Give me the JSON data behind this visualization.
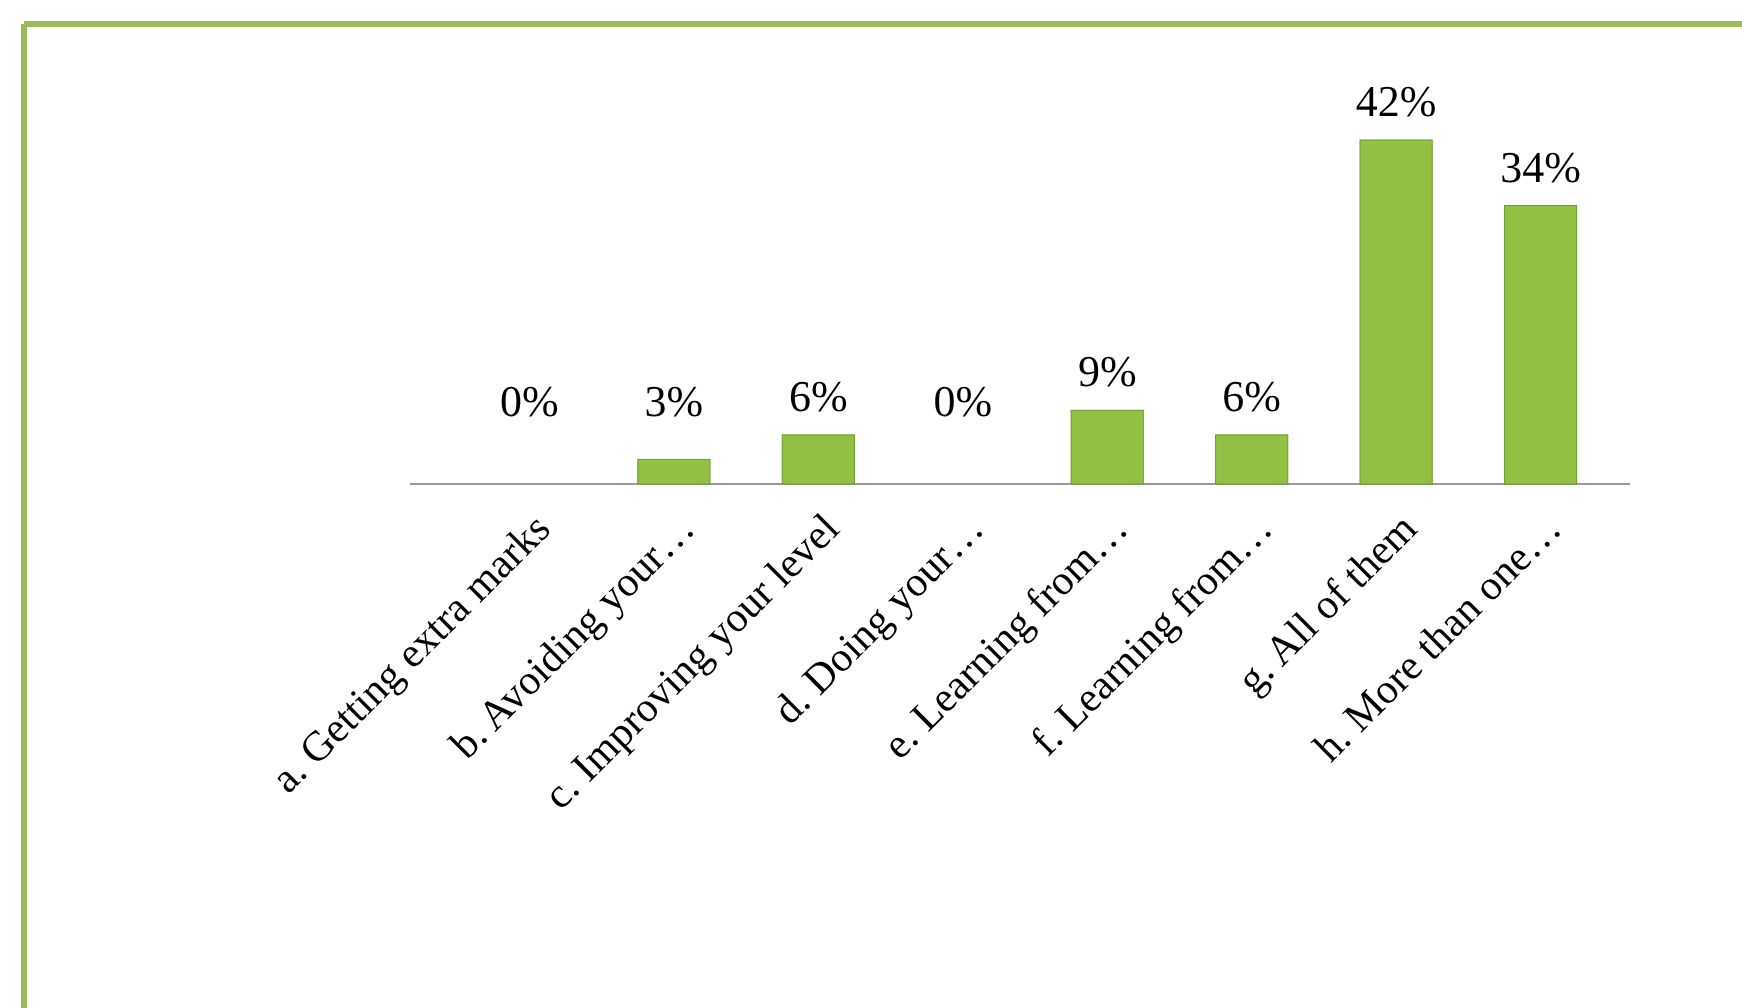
{
  "chart_data": {
    "type": "bar",
    "categories": [
      "a. Getting extra marks",
      "b. Avoiding your…",
      "c. Improving your level",
      "d. Doing your…",
      "e. Learning from…",
      "f. Learning from…",
      "g. All of them",
      "h. More than one…"
    ],
    "values": [
      0,
      3,
      6,
      0,
      9,
      6,
      42,
      34
    ],
    "value_labels": [
      "0%",
      "3%",
      "6%",
      "0%",
      "9%",
      "6%",
      "42%",
      "34%"
    ],
    "color": "#92c043"
  }
}
